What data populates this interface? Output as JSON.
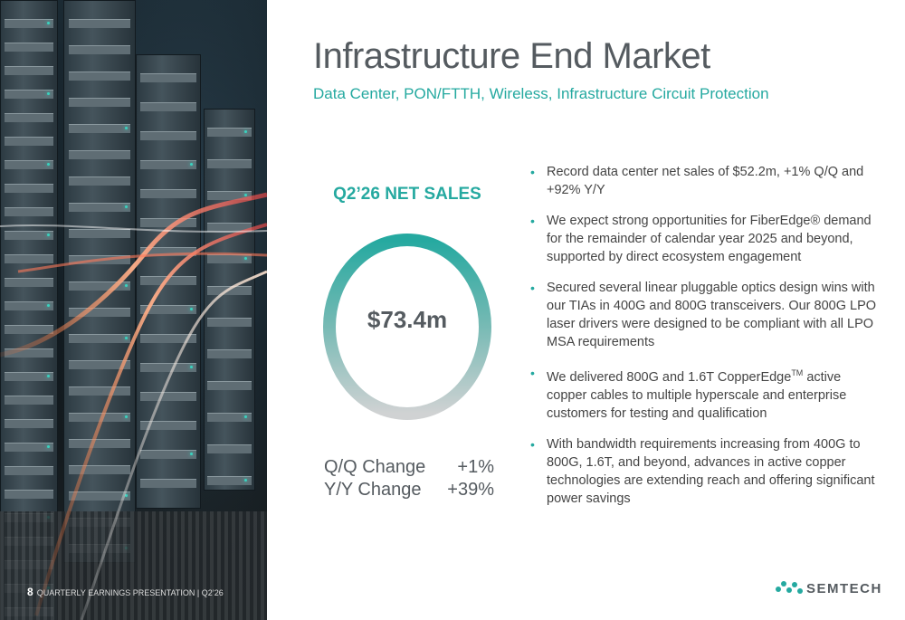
{
  "slide": {
    "title": "Infrastructure End Market",
    "subtitle": "Data Center, PON/FTTH, Wireless, Infrastructure Circuit Protection"
  },
  "sales": {
    "label": "Q2’26 NET SALES",
    "value": "$73.4m",
    "changes": [
      {
        "label": "Q/Q Change",
        "value": "+1%"
      },
      {
        "label": "Y/Y Change",
        "value": "+39%"
      }
    ]
  },
  "bullets": {
    "b1": "Record data center net sales of $52.2m, +1% Q/Q and +92% Y/Y",
    "b2": "We expect strong opportunities for FiberEdge® demand for the remainder of calendar year 2025 and beyond, supported by direct ecosystem engagement",
    "b3": "Secured several linear pluggable optics design wins with our TIAs in 400G and 800G transceivers. Our 800G LPO laser drivers were designed to be compliant with all LPO MSA requirements",
    "b4_pre": "We delivered 800G and 1.6T CopperEdge",
    "b4_sup": "TM",
    "b4_post": " active copper cables to multiple hyperscale and enterprise customers for testing and qualification",
    "b5": "With bandwidth requirements increasing from 400G to 800G, 1.6T, and beyond, advances in active copper technologies are extending reach and offering significant power savings"
  },
  "footer": {
    "page": "8",
    "text": "QUARTERLY EARNINGS PRESENTATION | Q2’26"
  },
  "logo": {
    "text": "SEMTECH",
    "icon": "semtech-wave-icon"
  },
  "colors": {
    "accent": "#25a9a0",
    "title": "#555b60",
    "ring_gray": "#c9cbcd"
  }
}
